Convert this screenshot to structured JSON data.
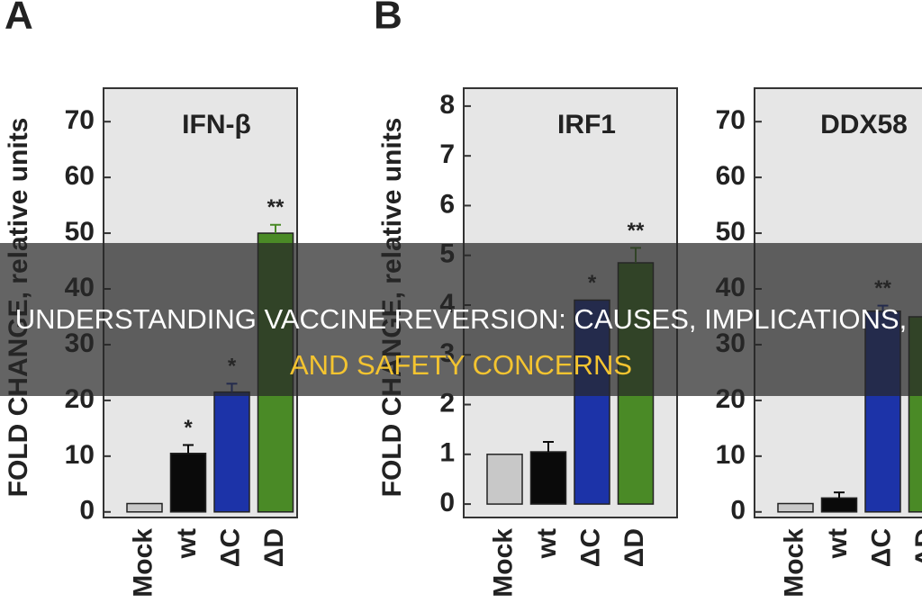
{
  "chart_data": [
    {
      "type": "bar",
      "panel": "A",
      "title": "IFN-β",
      "y_label": "FOLD CHANGE, relative units",
      "categories": [
        "Mock",
        "wt",
        "ΔC",
        "ΔD"
      ],
      "values": [
        1.5,
        10.5,
        21.5,
        50
      ],
      "errors": [
        null,
        1.5,
        1.5,
        1.5
      ],
      "annotations": [
        null,
        "*",
        "*",
        "**"
      ],
      "colors": [
        "#c8c8c8",
        "#0a0a0a",
        "#1c33a8",
        "#4a8a26"
      ],
      "ylim": [
        -1,
        76
      ],
      "yticks": [
        0,
        10,
        20,
        30,
        40,
        50,
        60,
        70
      ]
    },
    {
      "type": "bar",
      "panel": "B",
      "title": "IRF1",
      "y_label": "FOLD CHANGE, relative units",
      "categories": [
        "Mock",
        "wt",
        "ΔC",
        "ΔD"
      ],
      "values": [
        1,
        1.05,
        4.1,
        4.85
      ],
      "errors": [
        null,
        0.2,
        null,
        0.3
      ],
      "annotations": [
        null,
        null,
        "*",
        "**"
      ],
      "colors": [
        "#c8c8c8",
        "#0a0a0a",
        "#1c33a8",
        "#4a8a26"
      ],
      "ylim": [
        -0.27,
        8.36
      ],
      "yticks": [
        0,
        1,
        2,
        3,
        4,
        5,
        6,
        7,
        8
      ]
    },
    {
      "type": "bar",
      "title": "DDX58",
      "categories": [
        "Mock",
        "wt",
        "ΔC",
        "ΔD"
      ],
      "values": [
        1.5,
        2.5,
        36,
        35
      ],
      "errors": [
        null,
        1,
        1,
        null
      ],
      "annotations": [
        null,
        null,
        "**",
        "*"
      ],
      "colors": [
        "#c8c8c8",
        "#0a0a0a",
        "#1c33a8",
        "#4a8a26"
      ],
      "ylim": [
        -1,
        76
      ],
      "yticks": [
        0,
        10,
        20,
        30,
        40,
        50,
        60,
        70
      ]
    }
  ],
  "banner": {
    "lines": [
      "UNDERSTANDING VACCINE REVERSION: CAUSES, IMPLICATIONS,",
      "AND SAFETY CONCERNS"
    ]
  }
}
